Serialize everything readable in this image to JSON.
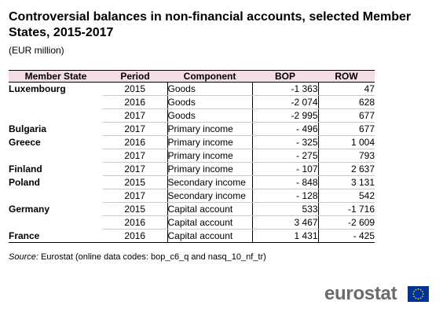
{
  "title": "Controversial balances in non-financial accounts, selected Member States, 2015-2017",
  "unit": "(EUR million)",
  "table": {
    "headers": [
      "Member State",
      "Period",
      "Component",
      "BOP",
      "ROW"
    ],
    "rows": [
      {
        "member_state": "Luxembourg",
        "period": "2015",
        "component": "Goods",
        "bop": "-1 363",
        "row": "47"
      },
      {
        "member_state": "",
        "period": "2016",
        "component": "Goods",
        "bop": "-2 074",
        "row": "628"
      },
      {
        "member_state": "",
        "period": "2017",
        "component": "Goods",
        "bop": "-2 995",
        "row": "677"
      },
      {
        "member_state": "Bulgaria",
        "period": "2017",
        "component": "Primary income",
        "bop": "- 496",
        "row": "677"
      },
      {
        "member_state": "Greece",
        "period": "2016",
        "component": "Primary income",
        "bop": "- 325",
        "row": "1 004"
      },
      {
        "member_state": "",
        "period": "2017",
        "component": "Primary income",
        "bop": "- 275",
        "row": "793"
      },
      {
        "member_state": "Finland",
        "period": "2017",
        "component": "Primary income",
        "bop": "- 107",
        "row": "2 637"
      },
      {
        "member_state": "Poland",
        "period": "2015",
        "component": "Secondary income",
        "bop": "- 848",
        "row": "3 131"
      },
      {
        "member_state": "",
        "period": "2017",
        "component": "Secondary income",
        "bop": "- 128",
        "row": "542"
      },
      {
        "member_state": "Germany",
        "period": "2015",
        "component": "Capital account",
        "bop": "533",
        "row": "-1 716"
      },
      {
        "member_state": "",
        "period": "2016",
        "component": "Capital account",
        "bop": "3 467",
        "row": "-2 609"
      },
      {
        "member_state": "France",
        "period": "2016",
        "component": "Capital account",
        "bop": "1 431",
        "row": "- 425"
      }
    ]
  },
  "source": {
    "label": "Source:",
    "text": "Eurostat (online data codes: bop_c6_q and nasq_10_nf_tr)"
  },
  "logo": {
    "text": "eurostat",
    "text_color": "#6b6b6b",
    "flag_color": "#003399",
    "star_color": "#ffcc00"
  },
  "colors": {
    "header_bg": "#f2dde9"
  }
}
